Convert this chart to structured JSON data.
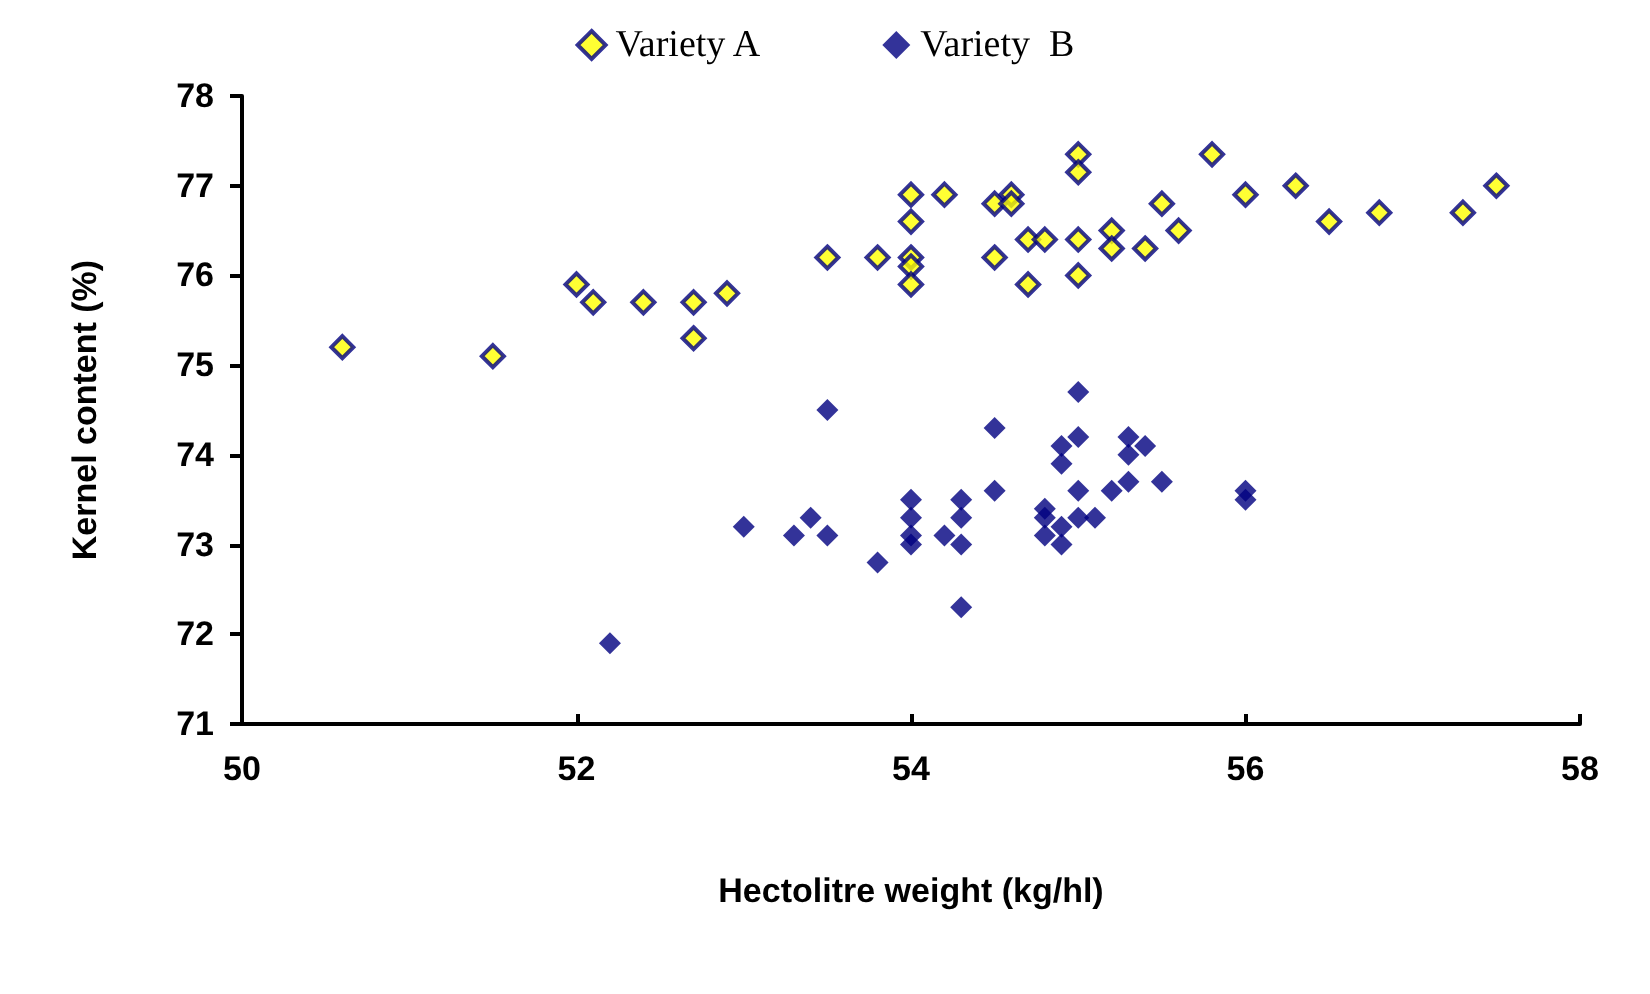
{
  "chart_data": {
    "type": "scatter",
    "xlabel": "Hectolitre weight (kg/hl)",
    "ylabel": "Kernel content (%)",
    "xlim": [
      50,
      58
    ],
    "xticks": [
      50,
      52,
      54,
      56,
      58
    ],
    "ylim": [
      71,
      78
    ],
    "yticks": [
      71,
      72,
      73,
      74,
      75,
      76,
      77,
      78
    ],
    "grid": false,
    "legend": "top",
    "marker": "diamond",
    "series": [
      {
        "name": "Variety A",
        "color": "#ffff00",
        "x": [
          50.6,
          51.5,
          52,
          52.1,
          52.4,
          52.7,
          52.7,
          52.9,
          53.5,
          53.8,
          54,
          54,
          54,
          54,
          54,
          54.2,
          54.5,
          54.5,
          54.6,
          54.6,
          54.7,
          54.7,
          54.8,
          55,
          55,
          55,
          55,
          55.2,
          55.2,
          55.4,
          55.5,
          55.6,
          55.8,
          56,
          56.3,
          56.5,
          56.8,
          57.3,
          57.5
        ],
        "values": [
          75.2,
          75.1,
          75.9,
          75.7,
          75.7,
          75.7,
          75.3,
          75.8,
          76.2,
          76.2,
          76.9,
          76.6,
          76.2,
          76.1,
          75.9,
          76.9,
          76.8,
          76.2,
          76.9,
          76.8,
          76.4,
          75.9,
          76.4,
          77.35,
          77.15,
          76.4,
          76,
          76.5,
          76.3,
          76.3,
          76.8,
          76.5,
          77.35,
          76.9,
          77,
          76.6,
          76.7,
          76.7,
          77
        ]
      },
      {
        "name": "Variety  B",
        "color": "#000080",
        "x": [
          52.2,
          53,
          53.3,
          53.4,
          53.5,
          53.5,
          53.8,
          54,
          54,
          54,
          54,
          54.2,
          54.3,
          54.3,
          54.3,
          54.3,
          54.5,
          54.5,
          54.8,
          54.8,
          54.8,
          54.9,
          54.9,
          54.9,
          54.9,
          55,
          55,
          55,
          55,
          55.1,
          55.2,
          55.3,
          55.3,
          55.3,
          55.4,
          55.5,
          56,
          56
        ],
        "values": [
          71.9,
          73.2,
          73.1,
          73.3,
          73.1,
          74.5,
          72.8,
          73.5,
          73.3,
          73.1,
          73,
          73.1,
          73.5,
          73.3,
          73,
          72.3,
          74.3,
          73.6,
          73.4,
          73.3,
          73.1,
          74.1,
          73.9,
          73.2,
          73,
          74.7,
          74.2,
          73.6,
          73.3,
          73.3,
          73.6,
          74.2,
          74,
          73.7,
          74.1,
          73.7,
          73.6,
          73.5
        ]
      }
    ]
  }
}
